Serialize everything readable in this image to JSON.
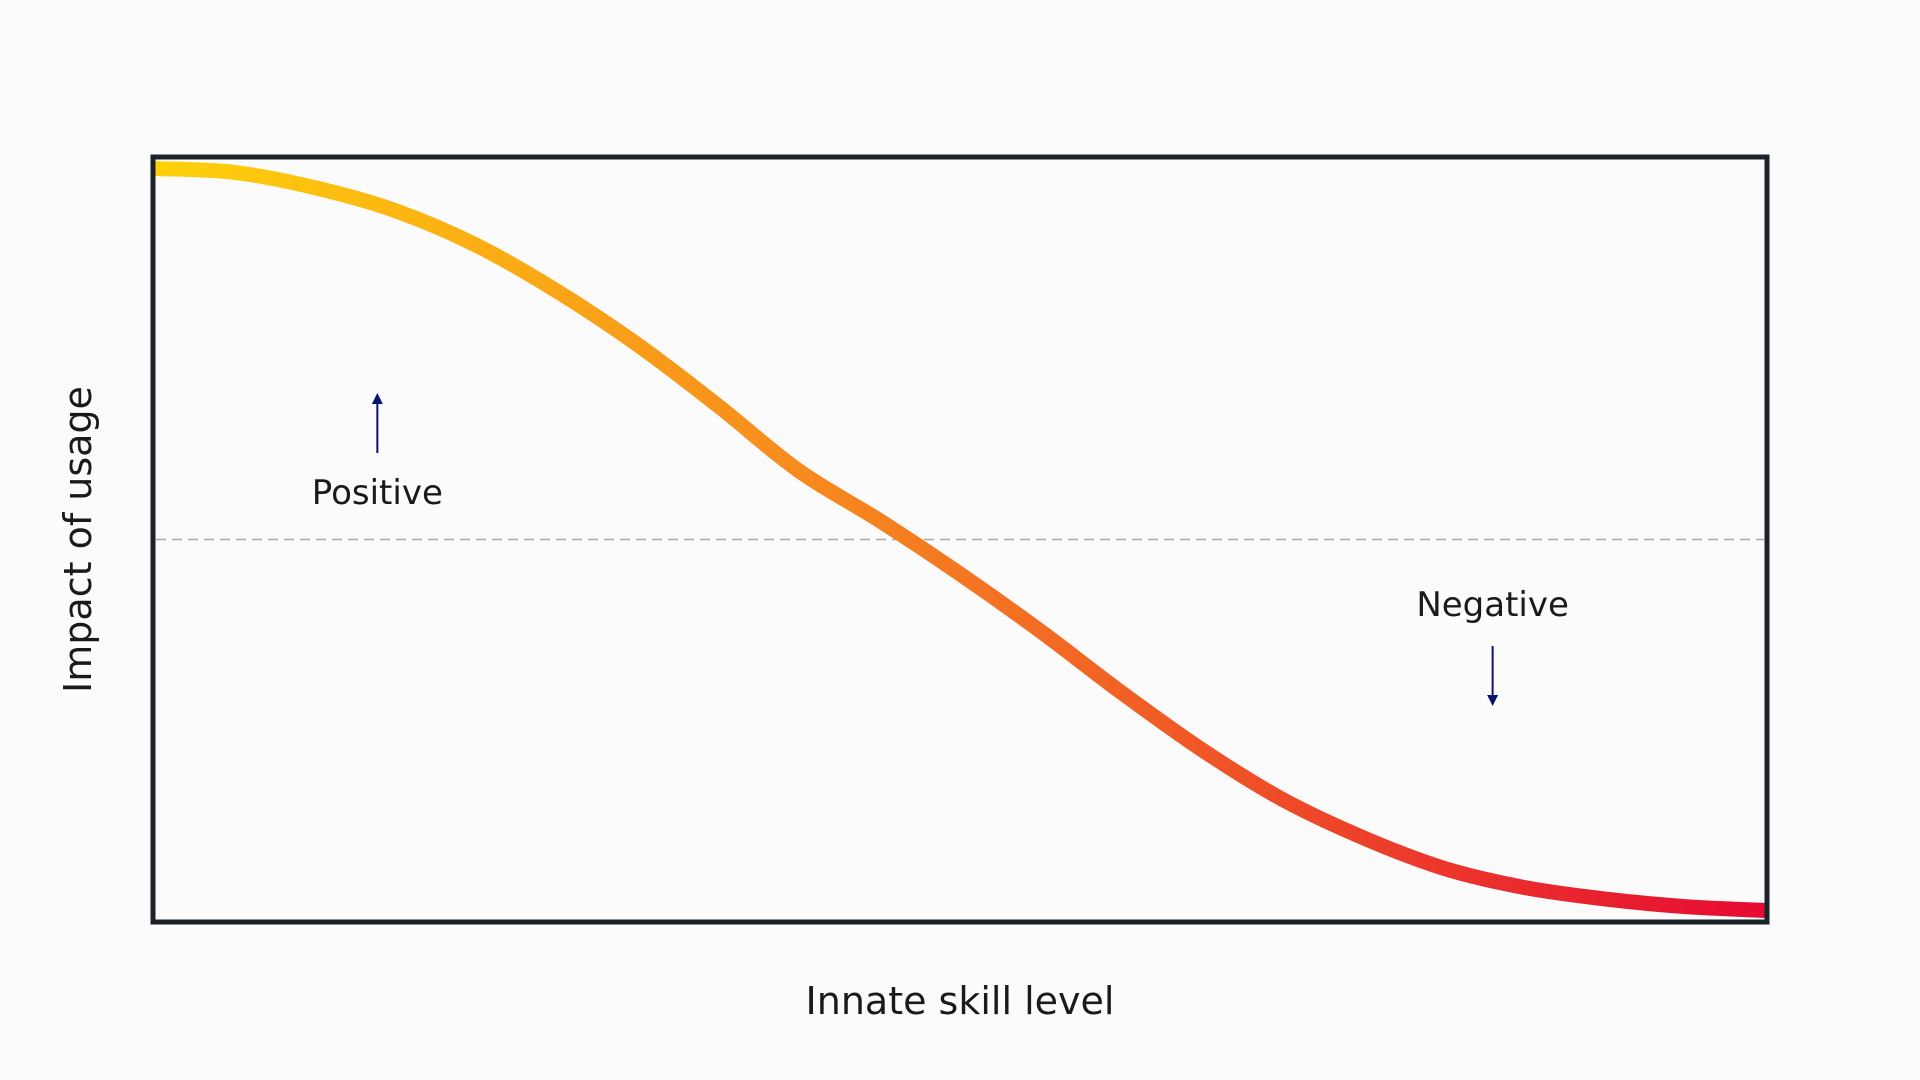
{
  "chart_data": {
    "type": "line",
    "title": "",
    "xlabel": "Innate skill level",
    "ylabel": "Impact of usage",
    "xlim": [
      0,
      1
    ],
    "ylim": [
      -1,
      1
    ],
    "grid": false,
    "baseline": 0,
    "series": [
      {
        "x": [
          0.0,
          0.05,
          0.1,
          0.15,
          0.2,
          0.25,
          0.3,
          0.35,
          0.4,
          0.45,
          0.5,
          0.55,
          0.6,
          0.65,
          0.7,
          0.75,
          0.8,
          0.85,
          0.9,
          0.95,
          1.0
        ],
        "y": [
          0.97,
          0.96,
          0.92,
          0.86,
          0.77,
          0.65,
          0.51,
          0.35,
          0.18,
          0.05,
          -0.09,
          -0.24,
          -0.4,
          -0.55,
          -0.68,
          -0.78,
          -0.86,
          -0.91,
          -0.94,
          -0.96,
          -0.97
        ],
        "color_start": "#ffd20a",
        "color_mid": "#f58220",
        "color_end": "#e60a32"
      }
    ],
    "annotations": [
      {
        "text": "Positive",
        "direction": "up"
      },
      {
        "text": "Negative",
        "direction": "down"
      }
    ],
    "colors": {
      "frame": "#1b2228",
      "baseline": "#a8a8a8",
      "arrow": "#0b1272",
      "text": "#1a1a1a"
    }
  }
}
